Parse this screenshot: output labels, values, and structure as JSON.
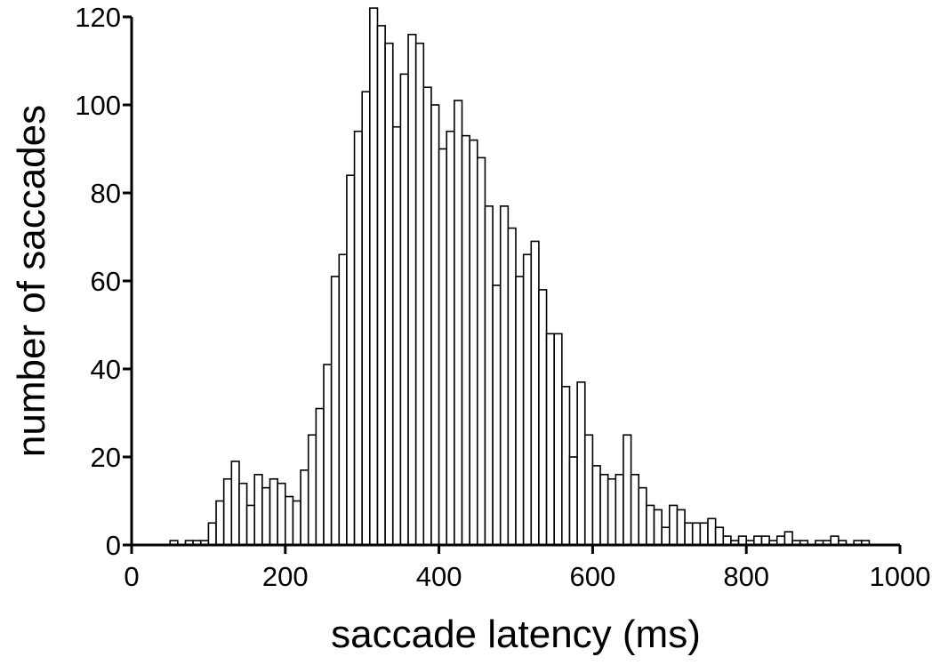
{
  "chart_data": {
    "type": "histogram",
    "x_label": "saccade latency (ms)",
    "y_label": "number of saccades",
    "bins": [
      0,
      10,
      20,
      30,
      40,
      50,
      60,
      70,
      80,
      90,
      100,
      110,
      120,
      130,
      140,
      150,
      160,
      170,
      180,
      190,
      200,
      210,
      220,
      230,
      240,
      250,
      260,
      270,
      280,
      290,
      300,
      310,
      320,
      330,
      340,
      350,
      360,
      370,
      380,
      390,
      400,
      410,
      420,
      430,
      440,
      450,
      460,
      470,
      480,
      490,
      500,
      510,
      520,
      530,
      540,
      550,
      560,
      570,
      580,
      590,
      600,
      610,
      620,
      630,
      640,
      650,
      660,
      670,
      680,
      690,
      700,
      710,
      720,
      730,
      740,
      750,
      760,
      770,
      780,
      790,
      800,
      810,
      820,
      830,
      840,
      850,
      860,
      870,
      880,
      890,
      900,
      910,
      920,
      930,
      940,
      950,
      960,
      970,
      980,
      990,
      1000
    ],
    "counts": [
      0,
      0,
      0,
      0,
      0,
      1,
      0,
      1,
      1,
      1,
      5,
      10,
      15,
      19,
      14,
      9,
      16,
      13,
      15,
      14,
      11,
      10,
      17,
      25,
      31,
      41,
      61,
      66,
      84,
      94,
      103,
      122,
      118,
      114,
      95,
      107,
      116,
      114,
      104,
      100,
      90,
      94,
      101,
      93,
      92,
      88,
      77,
      59,
      77,
      72,
      61,
      66,
      69,
      58,
      48,
      48,
      36,
      20,
      37,
      25,
      18,
      16,
      15,
      16,
      25,
      16,
      13,
      9,
      8,
      4,
      9,
      8,
      5,
      5,
      5,
      6,
      4,
      2,
      1,
      2,
      1,
      2,
      2,
      1,
      2,
      3,
      1,
      1,
      0,
      1,
      1,
      2,
      1,
      0,
      1,
      1,
      0,
      0,
      0,
      0
    ],
    "color": "#ffffff",
    "edgecolor": "#000000",
    "xlim": [
      0,
      1000
    ],
    "xticks": [
      0,
      200,
      400,
      600,
      800,
      1000
    ],
    "ylim": [
      0,
      120
    ],
    "yticks": [
      0,
      20,
      40,
      60,
      80,
      100,
      120
    ]
  }
}
